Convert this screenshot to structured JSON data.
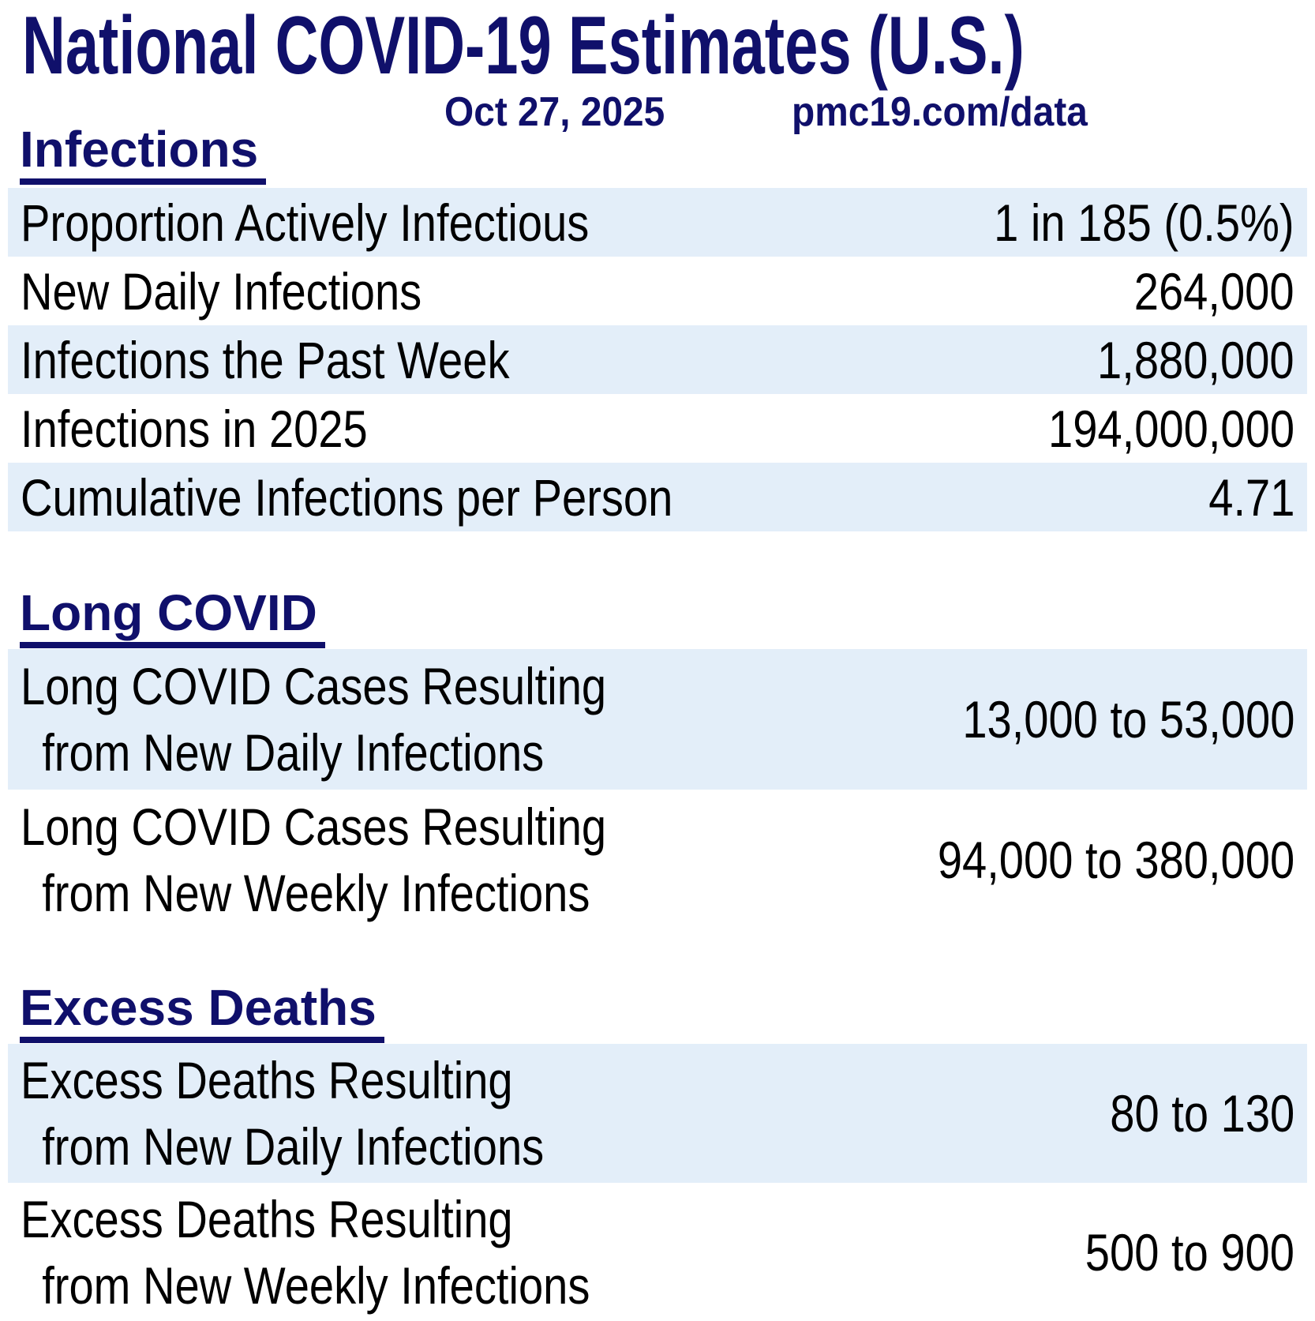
{
  "header": {
    "title": "National COVID-19 Estimates (U.S.)",
    "date": "Oct 27, 2025",
    "source": "pmc19.com/data"
  },
  "colors": {
    "heading_navy": "#10106b",
    "row_shade_blue": "#e3eef9",
    "body_text": "#000000",
    "background": "#ffffff"
  },
  "sections": [
    {
      "heading": "Infections",
      "rows": [
        {
          "label": "Proportion Actively Infectious",
          "value": "1 in 185 (0.5%)"
        },
        {
          "label": "New Daily Infections",
          "value": "264,000"
        },
        {
          "label": "Infections the Past Week",
          "value": "1,880,000"
        },
        {
          "label": "Infections in 2025",
          "value": "194,000,000"
        },
        {
          "label": "Cumulative Infections per Person",
          "value": "4.71"
        }
      ]
    },
    {
      "heading": "Long COVID",
      "rows": [
        {
          "label_line1": "Long COVID Cases Resulting",
          "label_line2": "from New Daily Infections",
          "value": "13,000 to 53,000"
        },
        {
          "label_line1": "Long COVID Cases Resulting",
          "label_line2": "from New Weekly Infections",
          "value": "94,000 to 380,000"
        }
      ]
    },
    {
      "heading": "Excess Deaths",
      "rows": [
        {
          "label_line1": "Excess Deaths Resulting",
          "label_line2": "from New Daily Infections",
          "value": "80 to 130"
        },
        {
          "label_line1": "Excess Deaths Resulting",
          "label_line2": "from New Weekly Infections",
          "value": "500 to 900"
        }
      ]
    }
  ]
}
